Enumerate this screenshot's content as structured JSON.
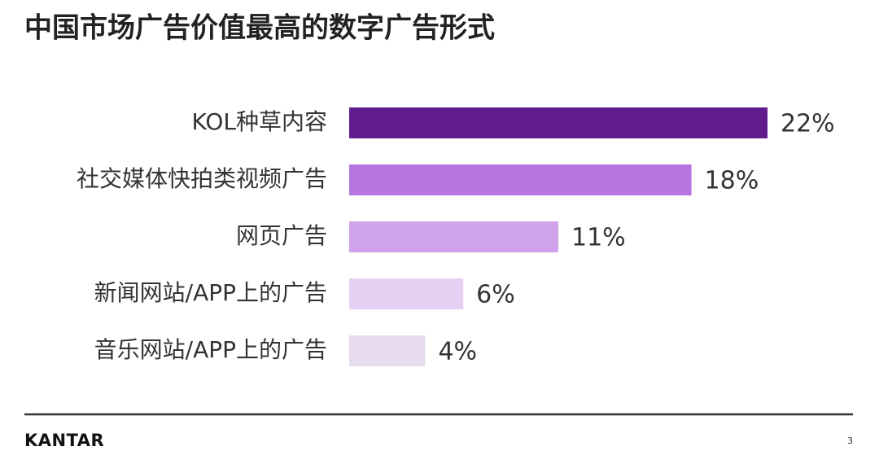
{
  "chart_data": {
    "type": "hbar",
    "title": "中国市场广告价值最高的数字广告形式",
    "categories": [
      "KOL种草内容",
      "社交媒体快拍类视频广告",
      "网页广告",
      "新闻网站/APP上的广告",
      "音乐网站/APP上的广告"
    ],
    "values": [
      22,
      18,
      11,
      6,
      4
    ],
    "value_labels": [
      "22%",
      "18%",
      "11%",
      "6%",
      "4%"
    ],
    "colors": [
      "#611d8c",
      "#b676e0",
      "#cfa2e9",
      "#e6d1f4",
      "#e6dcee"
    ]
  },
  "footer": {
    "brand": "KANTAR",
    "page": "3"
  }
}
